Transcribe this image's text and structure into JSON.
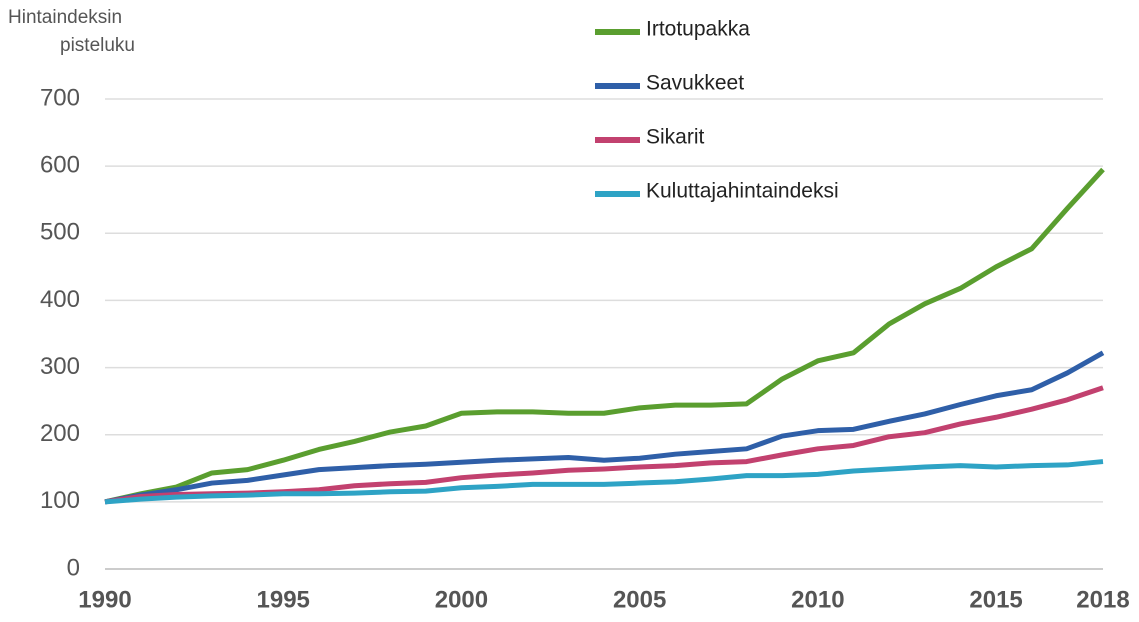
{
  "chart_data": {
    "type": "line",
    "y_label": [
      "Hintaindeksin",
      "pisteluku"
    ],
    "x": [
      1990,
      1991,
      1992,
      1993,
      1994,
      1995,
      1996,
      1997,
      1998,
      1999,
      2000,
      2001,
      2002,
      2003,
      2004,
      2005,
      2006,
      2007,
      2008,
      2009,
      2010,
      2011,
      2012,
      2013,
      2014,
      2015,
      2016,
      2017,
      2018
    ],
    "series": [
      {
        "name": "Irtotupakka",
        "color": "#5a9e2f",
        "values": [
          100,
          112,
          122,
          143,
          148,
          162,
          178,
          190,
          204,
          213,
          232,
          234,
          234,
          232,
          232,
          240,
          244,
          244,
          246,
          283,
          310,
          322,
          365,
          395,
          418,
          450,
          477,
          537,
          595
        ]
      },
      {
        "name": "Savukkeet",
        "color": "#2f5fa8",
        "values": [
          100,
          110,
          118,
          128,
          132,
          140,
          148,
          151,
          154,
          156,
          159,
          162,
          164,
          166,
          162,
          165,
          171,
          175,
          179,
          198,
          206,
          208,
          220,
          231,
          245,
          258,
          267,
          292,
          322
        ]
      },
      {
        "name": "Sikarit",
        "color": "#c2416f",
        "values": [
          100,
          108,
          111,
          112,
          113,
          115,
          118,
          124,
          127,
          129,
          136,
          140,
          143,
          147,
          149,
          152,
          154,
          158,
          160,
          170,
          179,
          184,
          197,
          203,
          216,
          226,
          238,
          252,
          270
        ]
      },
      {
        "name": "Kuluttajahintaindeksi",
        "color": "#2ea3c5",
        "values": [
          100,
          104,
          107,
          109,
          110,
          112,
          112,
          113,
          115,
          116,
          121,
          123,
          126,
          126,
          126,
          128,
          130,
          134,
          139,
          139,
          141,
          146,
          149,
          152,
          154,
          152,
          154,
          155,
          160
        ]
      }
    ],
    "xlim": [
      1990,
      2018
    ],
    "xticks": [
      1990,
      1995,
      2000,
      2005,
      2010,
      2015,
      2018
    ],
    "ylim": [
      0,
      700
    ],
    "yticks": [
      0,
      100,
      200,
      300,
      400,
      500,
      600,
      700
    ],
    "grid": true
  }
}
